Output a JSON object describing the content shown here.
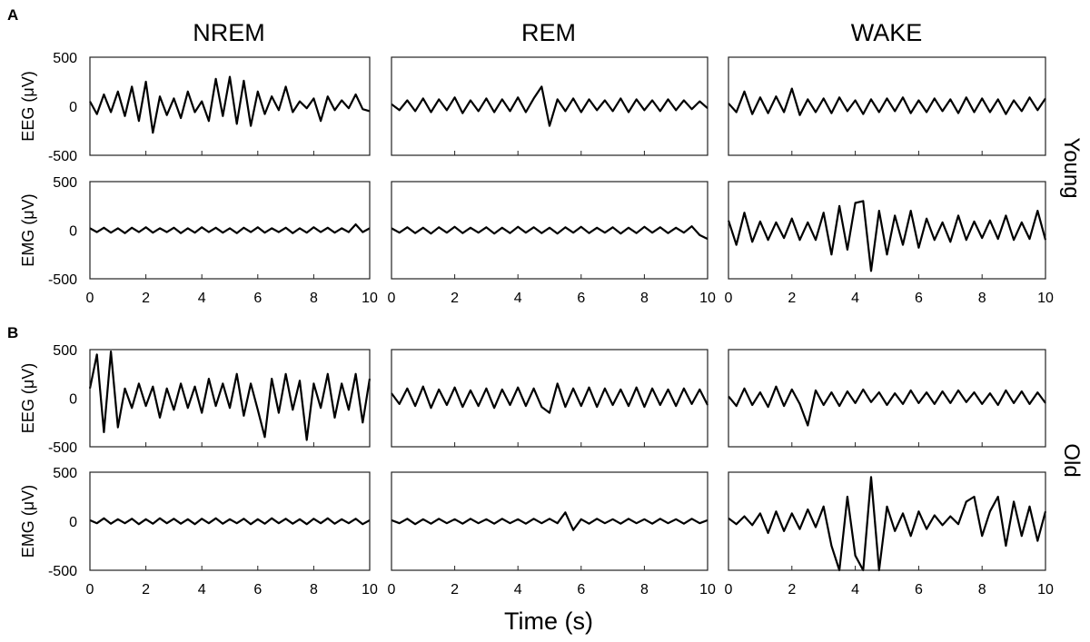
{
  "chart_data": {
    "type": "line",
    "panel_labels": [
      "A",
      "B"
    ],
    "column_titles": [
      "NREM",
      "REM",
      "WAKE"
    ],
    "row_group_labels": [
      "Young",
      "Old"
    ],
    "ylabels": [
      "EEG (μV)",
      "EMG (μV)"
    ],
    "xlabel": "Time (s)",
    "xlim": [
      0,
      10
    ],
    "ylim": [
      -500,
      500
    ],
    "xticks": [
      0,
      2,
      4,
      6,
      8,
      10
    ],
    "yticks": [
      -500,
      0,
      500
    ],
    "grid": false,
    "line_color": "#000000",
    "x": [
      0,
      0.25,
      0.5,
      0.75,
      1,
      1.25,
      1.5,
      1.75,
      2,
      2.25,
      2.5,
      2.75,
      3,
      3.25,
      3.5,
      3.75,
      4,
      4.25,
      4.5,
      4.75,
      5,
      5.25,
      5.5,
      5.75,
      6,
      6.25,
      6.5,
      6.75,
      7,
      7.25,
      7.5,
      7.75,
      8,
      8.25,
      8.5,
      8.75,
      9,
      9.25,
      9.5,
      9.75,
      10
    ],
    "groups": [
      {
        "name": "Young",
        "panels": [
          {
            "state": "NREM",
            "signal": "EEG",
            "y": [
              50,
              -80,
              120,
              -60,
              150,
              -100,
              200,
              -150,
              250,
              -270,
              100,
              -90,
              80,
              -120,
              150,
              -60,
              50,
              -150,
              280,
              -100,
              300,
              -180,
              260,
              -200,
              150,
              -80,
              100,
              -40,
              200,
              -60,
              50,
              -20,
              80,
              -150,
              100,
              -40,
              60,
              -20,
              120,
              -30,
              -50
            ]
          },
          {
            "state": "REM",
            "signal": "EEG",
            "y": [
              20,
              -40,
              60,
              -50,
              80,
              -60,
              70,
              -40,
              90,
              -70,
              60,
              -50,
              80,
              -60,
              70,
              -50,
              90,
              -60,
              80,
              200,
              -200,
              70,
              -50,
              80,
              -60,
              70,
              -40,
              60,
              -50,
              80,
              -60,
              70,
              -40,
              60,
              -50,
              70,
              -40,
              60,
              -30,
              50,
              -20
            ]
          },
          {
            "state": "WAKE",
            "signal": "EEG",
            "y": [
              30,
              -60,
              150,
              -80,
              90,
              -70,
              100,
              -60,
              180,
              -90,
              70,
              -60,
              80,
              -70,
              90,
              -50,
              60,
              -80,
              70,
              -60,
              80,
              -50,
              90,
              -70,
              60,
              -60,
              80,
              -50,
              70,
              -70,
              90,
              -60,
              80,
              -60,
              70,
              -80,
              60,
              -50,
              90,
              -40,
              80
            ]
          },
          {
            "state": "NREM",
            "signal": "EMG",
            "y": [
              20,
              -20,
              25,
              -25,
              20,
              -30,
              25,
              -20,
              30,
              -25,
              20,
              -20,
              25,
              -30,
              20,
              -25,
              30,
              -20,
              25,
              -25,
              20,
              -30,
              25,
              -20,
              30,
              -25,
              20,
              -20,
              25,
              -30,
              20,
              -25,
              30,
              -20,
              25,
              -25,
              20,
              -20,
              60,
              -20,
              20
            ]
          },
          {
            "state": "REM",
            "signal": "EMG",
            "y": [
              20,
              -25,
              30,
              -30,
              25,
              -35,
              30,
              -25,
              35,
              -30,
              25,
              -25,
              30,
              -35,
              25,
              -30,
              35,
              -25,
              30,
              -30,
              25,
              -35,
              30,
              -25,
              35,
              -30,
              25,
              -25,
              30,
              -35,
              25,
              -30,
              35,
              -25,
              30,
              -30,
              25,
              -25,
              40,
              -50,
              -90
            ]
          },
          {
            "state": "WAKE",
            "signal": "EMG",
            "y": [
              100,
              -150,
              180,
              -120,
              90,
              -100,
              80,
              -80,
              120,
              -100,
              80,
              -100,
              180,
              -250,
              250,
              -200,
              280,
              300,
              -420,
              200,
              -250,
              150,
              -150,
              200,
              -180,
              120,
              -100,
              80,
              -120,
              150,
              -100,
              90,
              -80,
              100,
              -90,
              150,
              -100,
              80,
              -90,
              200,
              -100
            ]
          }
        ]
      },
      {
        "name": "Old",
        "panels": [
          {
            "state": "NREM",
            "signal": "EEG",
            "y": [
              100,
              450,
              -350,
              480,
              -300,
              100,
              -100,
              150,
              -80,
              120,
              -200,
              100,
              -120,
              150,
              -100,
              120,
              -150,
              200,
              -80,
              150,
              -100,
              250,
              -180,
              150,
              -120,
              -400,
              200,
              -150,
              250,
              -120,
              180,
              -430,
              150,
              -100,
              250,
              -200,
              150,
              -120,
              250,
              -250,
              200
            ]
          },
          {
            "state": "REM",
            "signal": "EEG",
            "y": [
              50,
              -60,
              100,
              -80,
              120,
              -100,
              90,
              -70,
              110,
              -90,
              80,
              -80,
              100,
              -100,
              90,
              -70,
              110,
              -80,
              100,
              -90,
              -150,
              150,
              -90,
              100,
              -80,
              110,
              -90,
              100,
              -70,
              90,
              -80,
              110,
              -90,
              100,
              -70,
              90,
              -80,
              100,
              -60,
              90,
              -70
            ]
          },
          {
            "state": "WAKE",
            "signal": "EEG",
            "y": [
              20,
              -80,
              100,
              -70,
              60,
              -90,
              120,
              -80,
              90,
              -60,
              -280,
              80,
              -70,
              60,
              -80,
              70,
              -50,
              90,
              -40,
              60,
              -70,
              50,
              -60,
              80,
              -50,
              60,
              -60,
              70,
              -50,
              80,
              -40,
              60,
              -60,
              50,
              -70,
              80,
              -50,
              70,
              -60,
              60,
              -50
            ]
          },
          {
            "state": "NREM",
            "signal": "EMG",
            "y": [
              10,
              -20,
              30,
              -25,
              20,
              -20,
              25,
              -30,
              20,
              -25,
              30,
              -20,
              25,
              -25,
              20,
              -30,
              25,
              -20,
              30,
              -25,
              20,
              -20,
              25,
              -30,
              20,
              -25,
              30,
              -20,
              25,
              -25,
              20,
              -30,
              25,
              -20,
              30,
              -25,
              20,
              -20,
              25,
              -30,
              10
            ]
          },
          {
            "state": "REM",
            "signal": "EMG",
            "y": [
              10,
              -20,
              25,
              -30,
              20,
              -25,
              25,
              -20,
              20,
              -25,
              25,
              -20,
              20,
              -25,
              25,
              -20,
              20,
              -25,
              25,
              -20,
              25,
              -20,
              90,
              -90,
              20,
              -25,
              25,
              -20,
              20,
              -25,
              25,
              -20,
              20,
              -25,
              25,
              -20,
              20,
              -25,
              25,
              -20,
              10
            ]
          },
          {
            "state": "WAKE",
            "signal": "EMG",
            "y": [
              30,
              -30,
              50,
              -40,
              80,
              -120,
              100,
              -100,
              80,
              -80,
              120,
              -60,
              150,
              -250,
              -500,
              250,
              -350,
              -500,
              450,
              -500,
              150,
              -100,
              80,
              -150,
              100,
              -80,
              60,
              -40,
              50,
              -30,
              200,
              250,
              -150,
              100,
              250,
              -250,
              200,
              -150,
              150,
              -200,
              100
            ]
          }
        ]
      }
    ]
  }
}
